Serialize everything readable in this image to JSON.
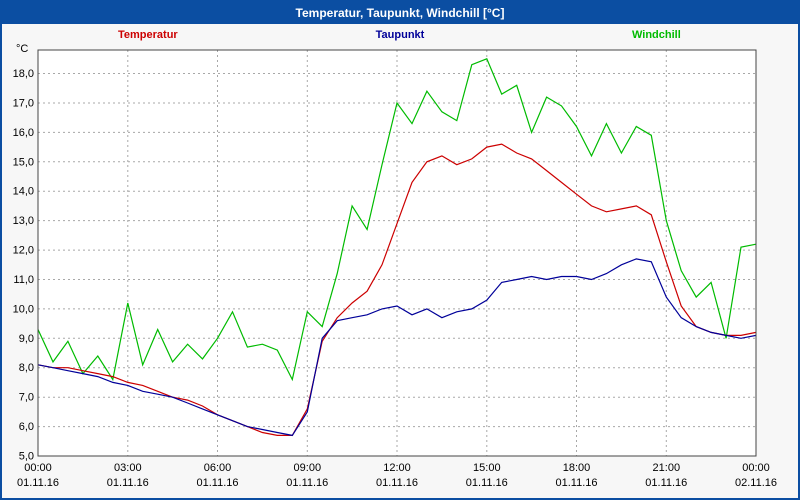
{
  "window": {
    "title": "Temperatur, Taupunkt, Windchill [°C]",
    "titlebar_color": "#0b4ea2",
    "border_color": "#0b4ea2"
  },
  "legend": {
    "temperatur": {
      "label": "Temperatur",
      "color": "#cc0000"
    },
    "taupunkt": {
      "label": "Taupunkt",
      "color": "#000099"
    },
    "windchill": {
      "label": "Windchill",
      "color": "#00bb00"
    }
  },
  "chart_data": {
    "type": "line",
    "title": "Temperatur, Taupunkt, Windchill [°C]",
    "ylabel": "°C",
    "xlabel": "",
    "grid": "dashed",
    "legend_position": "top",
    "ylim": [
      5.0,
      18.8
    ],
    "y_tick_step": 1.0,
    "y_tick_labels": [
      "5,0",
      "6,0",
      "7,0",
      "8,0",
      "9,0",
      "10,0",
      "11,0",
      "12,0",
      "13,0",
      "14,0",
      "15,0",
      "16,0",
      "17,0",
      "18,0"
    ],
    "x_hours_range": [
      0,
      24
    ],
    "x_ticks": [
      {
        "hour": 0,
        "time": "00:00",
        "date": "01.11.16"
      },
      {
        "hour": 3,
        "time": "03:00",
        "date": "01.11.16"
      },
      {
        "hour": 6,
        "time": "06:00",
        "date": "01.11.16"
      },
      {
        "hour": 9,
        "time": "09:00",
        "date": "01.11.16"
      },
      {
        "hour": 12,
        "time": "12:00",
        "date": "01.11.16"
      },
      {
        "hour": 15,
        "time": "15:00",
        "date": "01.11.16"
      },
      {
        "hour": 18,
        "time": "18:00",
        "date": "01.11.16"
      },
      {
        "hour": 21,
        "time": "21:00",
        "date": "01.11.16"
      },
      {
        "hour": 24,
        "time": "00:00",
        "date": "02.11.16"
      }
    ],
    "x": [
      0,
      0.5,
      1,
      1.5,
      2,
      2.5,
      3,
      3.5,
      4,
      4.5,
      5,
      5.5,
      6,
      6.5,
      7,
      7.5,
      8,
      8.5,
      9,
      9.5,
      10,
      10.5,
      11,
      11.5,
      12,
      12.5,
      13,
      13.5,
      14,
      14.5,
      15,
      15.5,
      16,
      16.5,
      17,
      17.5,
      18,
      18.5,
      19,
      19.5,
      20,
      20.5,
      21,
      21.5,
      22,
      22.5,
      23,
      23.5,
      24
    ],
    "series": [
      {
        "name": "Temperatur",
        "color": "#cc0000",
        "values": [
          8.1,
          8.0,
          8.0,
          7.9,
          7.8,
          7.7,
          7.5,
          7.4,
          7.2,
          7.0,
          6.9,
          6.7,
          6.4,
          6.2,
          6.0,
          5.8,
          5.7,
          5.7,
          6.6,
          8.9,
          9.7,
          10.2,
          10.6,
          11.5,
          12.9,
          14.3,
          15.0,
          15.2,
          14.9,
          15.1,
          15.5,
          15.6,
          15.3,
          15.1,
          14.7,
          14.3,
          13.9,
          13.5,
          13.3,
          13.4,
          13.5,
          13.2,
          11.6,
          10.1,
          9.4,
          9.2,
          9.1,
          9.1,
          9.2
        ]
      },
      {
        "name": "Taupunkt",
        "color": "#000099",
        "values": [
          8.1,
          8.0,
          7.9,
          7.8,
          7.7,
          7.5,
          7.4,
          7.2,
          7.1,
          7.0,
          6.8,
          6.6,
          6.4,
          6.2,
          6.0,
          5.9,
          5.8,
          5.7,
          6.5,
          9.0,
          9.6,
          9.7,
          9.8,
          10.0,
          10.1,
          9.8,
          10.0,
          9.7,
          9.9,
          10.0,
          10.3,
          10.9,
          11.0,
          11.1,
          11.0,
          11.1,
          11.1,
          11.0,
          11.2,
          11.5,
          11.7,
          11.6,
          10.4,
          9.7,
          9.4,
          9.2,
          9.1,
          9.0,
          9.1
        ]
      },
      {
        "name": "Windchill",
        "color": "#00bb00",
        "values": [
          9.3,
          8.2,
          8.9,
          7.8,
          8.4,
          7.6,
          10.2,
          8.1,
          9.3,
          8.2,
          8.8,
          8.3,
          9.0,
          9.9,
          8.7,
          8.8,
          8.6,
          7.6,
          9.9,
          9.4,
          11.2,
          13.5,
          12.7,
          14.9,
          17.0,
          16.3,
          17.4,
          16.7,
          16.4,
          18.3,
          18.5,
          17.3,
          17.6,
          16.0,
          17.2,
          16.9,
          16.2,
          15.2,
          16.3,
          15.3,
          16.2,
          15.9,
          13.0,
          11.3,
          10.4,
          10.9,
          9.0,
          12.1,
          12.2
        ]
      }
    ]
  }
}
